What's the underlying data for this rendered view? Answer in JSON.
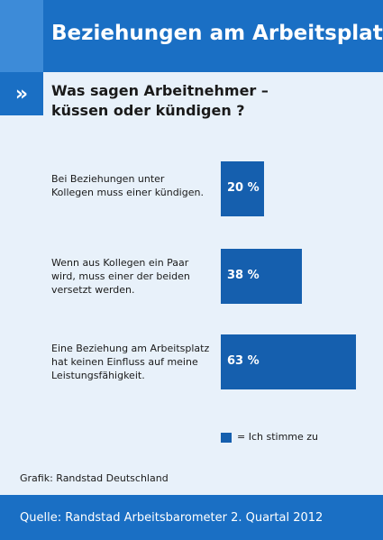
{
  "header": {
    "title": "Beziehungen am Arbeitsplatz"
  },
  "question": {
    "lines": [
      "Was sagen Arbeitnehmer –",
      "küssen oder kündigen ?"
    ]
  },
  "chevron": "»",
  "chart_data": {
    "type": "bar",
    "orientation": "horizontal",
    "categories": [
      [
        "Bei Beziehungen unter",
        "Kollegen muss einer kündigen."
      ],
      [
        "Wenn aus Kollegen ein Paar",
        "wird, muss einer der beiden",
        "versetzt werden."
      ],
      [
        "Eine Beziehung am Arbeitsplatz",
        "hat keinen Einfluss auf meine",
        "Leistungsfähigkeit."
      ]
    ],
    "values": [
      20,
      38,
      63
    ],
    "value_labels": [
      "20 %",
      "38 %",
      "63 %"
    ],
    "unit": "%",
    "legend": "= Ich stimme zu",
    "bar_color": "#155fae"
  },
  "credit": "Grafik: Randstad Deutschland",
  "footer": {
    "source": "Quelle: Randstad Arbeitsbarometer 2. Quartal 2012"
  },
  "colors": {
    "header": "#1a6fc4",
    "header_accent": "#3d8bd8",
    "panel": "#e8f1fa"
  }
}
